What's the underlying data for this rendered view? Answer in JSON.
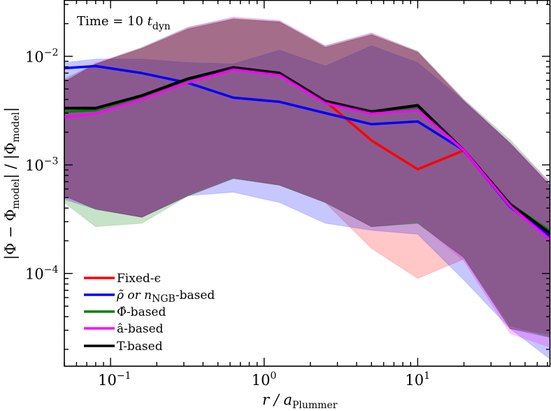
{
  "chart_data": {
    "type": "line",
    "title": "",
    "annotation": {
      "prefix": "Time = 10 ",
      "t": "t",
      "sub": "dyn"
    },
    "xlabel": {
      "main": "r / a",
      "sub": "Plummer"
    },
    "ylabel": {
      "a": "|Φ − Φ",
      "a_sub": "model",
      "b": "| / |Φ",
      "b_sub": "model",
      "c": "|"
    },
    "xscale": "log",
    "yscale": "log",
    "xlim": [
      0.05,
      73
    ],
    "ylim": [
      1.4e-05,
      0.033
    ],
    "xticks": [
      {
        "value": 0.1,
        "base": "10",
        "exp": "−1"
      },
      {
        "value": 1,
        "base": "10",
        "exp": "0"
      },
      {
        "value": 10,
        "base": "10",
        "exp": "1"
      }
    ],
    "yticks": [
      {
        "value": 0.0001,
        "base": "10",
        "exp": "−4"
      },
      {
        "value": 0.001,
        "base": "10",
        "exp": "−3"
      },
      {
        "value": 0.01,
        "base": "10",
        "exp": "−2"
      }
    ],
    "grid": false,
    "legend_placement": "lower-left",
    "x": [
      0.05,
      0.08,
      0.16,
      0.32,
      0.63,
      1.26,
      2.5,
      5,
      10,
      20,
      40,
      80
    ],
    "series": [
      {
        "name": "Fixed-ϵ",
        "key": "fixed",
        "color": "#ff0000",
        "values": [
          0.00333,
          0.00333,
          0.00435,
          0.00622,
          0.00788,
          0.007,
          0.00387,
          0.00168,
          0.00091,
          0.00136,
          null,
          null
        ],
        "upper": [
          0.0058,
          0.0085,
          0.0118,
          0.0179,
          0.022,
          0.0207,
          0.0121,
          0.0158,
          0.0109,
          0.00387,
          0.00158,
          0.00056
        ],
        "lower": [
          0.00052,
          0.00039,
          0.00033,
          0.00052,
          0.00075,
          0.00065,
          0.00045,
          0.00017,
          9e-05,
          0.000136,
          3.1e-05,
          2.7e-05
        ]
      },
      {
        "name": "ρ̃ or n_NGB-based",
        "label_main": "ρ̃ or n",
        "label_sub": "NGB",
        "label_tail": "-based",
        "key": "rho",
        "color": "#0000ff",
        "values": [
          0.00777,
          0.00812,
          0.007,
          0.00569,
          0.00416,
          0.00381,
          0.003,
          0.00237,
          0.00251,
          0.00136,
          0.00041,
          0.000198
        ],
        "upper": [
          0.00875,
          0.00942,
          0.00942,
          0.00875,
          0.00849,
          0.0114,
          0.00812,
          0.0125,
          0.00875,
          0.00387,
          0.00158,
          0.00056
        ],
        "lower": [
          0.00048,
          0.00039,
          0.00033,
          0.00052,
          0.00056,
          0.00045,
          0.00029,
          0.00025,
          0.00023,
          8.7e-05,
          3.1e-05,
          1.47e-05
        ]
      },
      {
        "name": "Φ̂-based",
        "key": "phi",
        "color": "#008000",
        "values": [
          0.00309,
          0.00318,
          0.00423,
          0.00603,
          0.00777,
          0.0069,
          0.00381,
          0.00305,
          0.00338,
          0.00136,
          0.000435,
          0.000225
        ],
        "upper": [
          0.0062,
          0.0085,
          0.0121,
          0.0185,
          0.0225,
          0.021,
          0.0125,
          0.0162,
          0.0112,
          0.004,
          0.0017,
          0.0006
        ],
        "lower": [
          0.00045,
          0.00027,
          0.00029,
          0.00052,
          0.00075,
          0.00065,
          0.00045,
          0.00027,
          0.00029,
          0.00014,
          3.3e-05,
          2.5e-05
        ]
      },
      {
        "name": "â-based",
        "key": "acc",
        "color": "#ff00ff",
        "values": [
          0.00275,
          0.00296,
          0.00403,
          0.00577,
          0.00754,
          0.0067,
          0.0037,
          0.00296,
          0.00319,
          0.00136,
          0.000417,
          0.000184
        ],
        "upper": [
          0.006,
          0.0087,
          0.012,
          0.0185,
          0.023,
          0.0215,
          0.0125,
          0.0165,
          0.011,
          0.004,
          0.0016,
          0.0006
        ],
        "lower": [
          0.0005,
          0.0004,
          0.00033,
          0.00054,
          0.00077,
          0.00066,
          0.00046,
          0.00027,
          0.0003,
          0.00013,
          2.8e-05,
          2e-05
        ]
      },
      {
        "name": "T-based",
        "key": "tidal",
        "color": "#000000",
        "values": [
          0.00333,
          0.00333,
          0.00435,
          0.00622,
          0.00788,
          0.007,
          0.00387,
          0.00309,
          0.00353,
          0.00136,
          0.000435,
          0.000213
        ],
        "upper": [
          0.0058,
          0.0085,
          0.0118,
          0.0179,
          0.022,
          0.0207,
          0.0121,
          0.0158,
          0.0109,
          0.00387,
          0.00158,
          0.00056
        ],
        "lower": [
          0.00052,
          0.00039,
          0.00033,
          0.00052,
          0.00075,
          0.00065,
          0.00045,
          0.00027,
          0.00029,
          0.00014,
          3.1e-05,
          2.5e-05
        ]
      }
    ]
  }
}
